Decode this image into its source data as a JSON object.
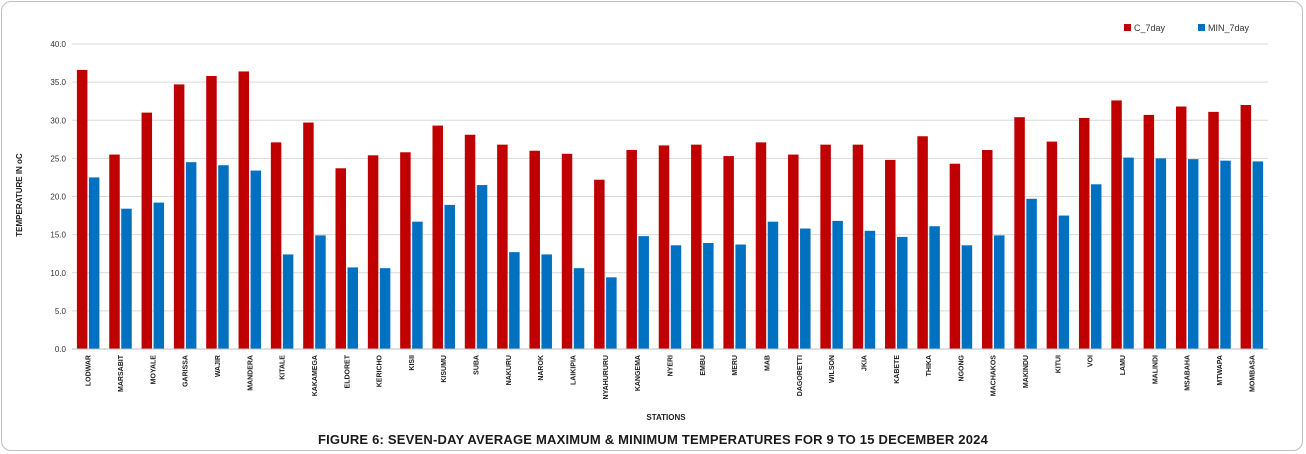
{
  "chart_data": {
    "type": "bar",
    "title": "FIGURE 6: SEVEN-DAY AVERAGE MAXIMUM & MINIMUM TEMPERATURES  FOR  9 TO 15  DECEMBER  2024",
    "xlabel": "STATIONS",
    "ylabel": "TEMPERATURE IN oC",
    "ylim": [
      0,
      40
    ],
    "yticks": [
      "0.0",
      "5.0",
      "10.0",
      "15.0",
      "20.0",
      "25.0",
      "30.0",
      "35.0",
      "40.0"
    ],
    "grid": true,
    "legend_position": "top-right",
    "categories": [
      "LODWAR",
      "MARSABIT",
      "MOYALE",
      "GARISSA",
      "WAJIR",
      "MANDERA",
      "KITALE",
      "KAKAMEGA",
      "ELDORET",
      "KERICHO",
      "KISII",
      "KISUMU",
      "SUBA",
      "NAKURU",
      "NAROK",
      "LAIKIPIA",
      "NYAHURURU",
      "KANGEMA",
      "NYERI",
      "EMBU",
      "MERU",
      "MAB",
      "DAGORETTI",
      "WILSON",
      "JKIA",
      "KABETE",
      "THIKA",
      "NGONG",
      "MACHAKOS",
      "MAKINDU",
      "KITUI",
      "VOI",
      "LAMU",
      "MALINDI",
      "MSABAHA",
      "MTWAPA",
      "MOMBASA"
    ],
    "series": [
      {
        "name": "C_7day",
        "color": "#c00000",
        "values": [
          36.6,
          25.5,
          31.0,
          34.7,
          35.8,
          36.4,
          27.1,
          29.7,
          23.7,
          25.4,
          25.8,
          29.3,
          28.1,
          26.8,
          26.0,
          25.6,
          22.2,
          26.1,
          26.7,
          26.8,
          25.3,
          27.1,
          25.5,
          26.8,
          26.8,
          24.8,
          27.9,
          24.3,
          26.1,
          30.4,
          27.2,
          30.3,
          32.6,
          30.7,
          31.8,
          31.1,
          32.0
        ]
      },
      {
        "name": "MIN_7day",
        "color": "#0070c0",
        "values": [
          22.5,
          18.4,
          19.2,
          24.5,
          24.1,
          23.4,
          12.4,
          14.9,
          10.7,
          10.6,
          16.7,
          18.9,
          21.5,
          12.7,
          12.4,
          10.6,
          9.4,
          14.8,
          13.6,
          13.9,
          13.7,
          16.7,
          15.8,
          16.8,
          15.5,
          14.7,
          16.1,
          13.6,
          14.9,
          19.7,
          17.5,
          21.6,
          25.1,
          25.0,
          24.9,
          24.7,
          24.6
        ]
      }
    ]
  }
}
